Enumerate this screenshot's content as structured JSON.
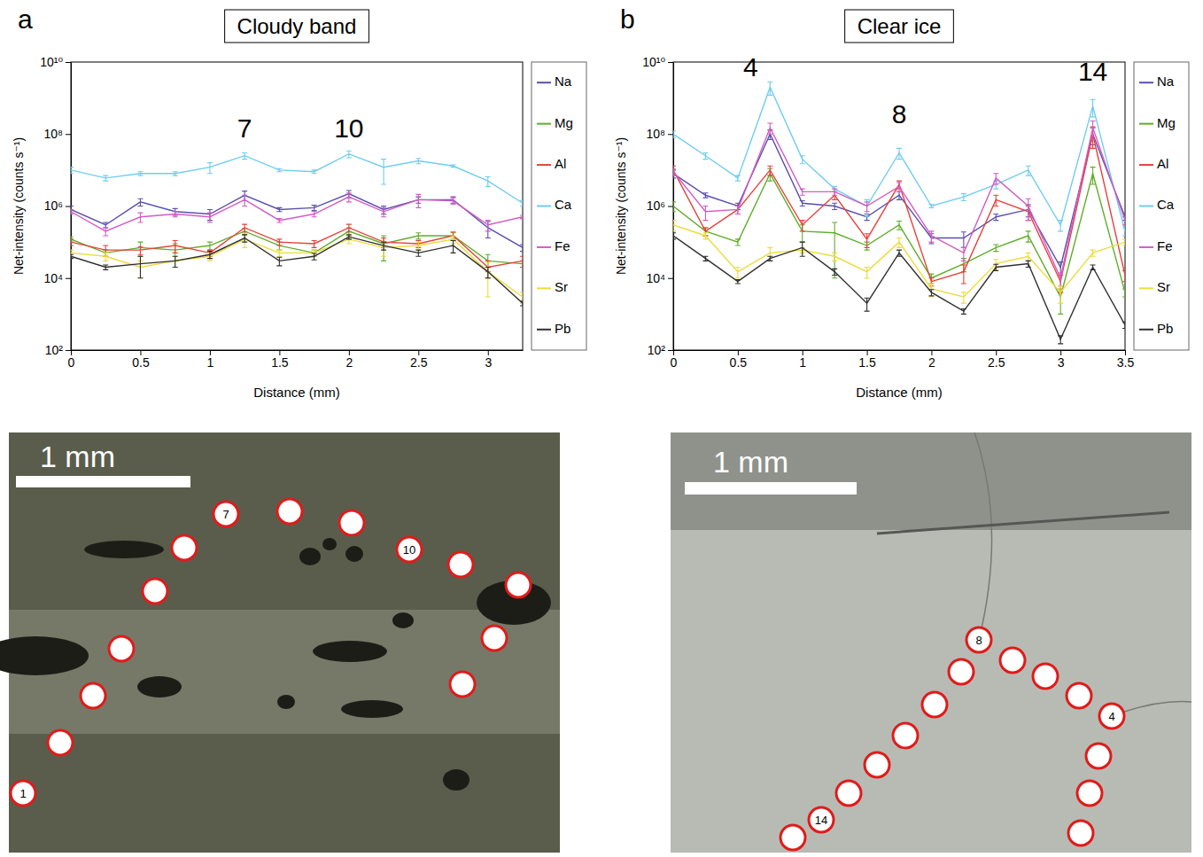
{
  "chart_data": [
    {
      "type": "line",
      "panel": "a",
      "title": "Cloudy band",
      "x_label": "Distance (mm)",
      "y_label": "Net-intensity (counts s⁻¹)",
      "log": "y",
      "grid": false,
      "legend": "right",
      "xlim": [
        0,
        3.25
      ],
      "xticks": [
        0,
        0.5,
        1,
        1.5,
        2,
        2.5,
        3
      ],
      "ylim": [
        100,
        10000000000.0
      ],
      "yticks": [
        {
          "value": 100,
          "label": "10²"
        },
        {
          "value": 10000,
          "label": "10⁴"
        },
        {
          "value": 1000000,
          "label": "10⁶"
        },
        {
          "value": 100000000,
          "label": "10⁸"
        },
        {
          "value": 10000000000,
          "label": "10¹⁰"
        }
      ],
      "x": [
        0,
        0.25,
        0.5,
        0.75,
        1,
        1.25,
        1.5,
        1.75,
        2,
        2.25,
        2.5,
        2.75,
        3,
        3.25
      ],
      "series": [
        {
          "name": "Na",
          "color": "#5a4fae",
          "values": [
            800000.0,
            300000.0,
            1300000.0,
            700000.0,
            600000.0,
            2000000.0,
            800000.0,
            900000.0,
            2200000.0,
            800000.0,
            1500000.0,
            1500000.0,
            250000.0,
            70000.0
          ],
          "errors": [
            200000.0,
            50000.0,
            300000.0,
            150000.0,
            200000.0,
            600000.0,
            100000.0,
            150000.0,
            500000.0,
            200000.0,
            300000.0,
            300000.0,
            120000.0,
            15000.0
          ]
        },
        {
          "name": "Mg",
          "color": "#5fae2a",
          "values": [
            120000.0,
            50000.0,
            70000.0,
            60000.0,
            80000.0,
            200000.0,
            80000.0,
            50000.0,
            200000.0,
            90000.0,
            150000.0,
            150000.0,
            30000.0,
            25000.0
          ],
          "errors": [
            20000.0,
            10000.0,
            30000.0,
            30000.0,
            20000.0,
            40000.0,
            20000.0,
            10000.0,
            50000.0,
            60000.0,
            30000.0,
            30000.0,
            15000.0,
            5000.0
          ]
        },
        {
          "name": "Al",
          "color": "#e8403a",
          "values": [
            100000.0,
            60000.0,
            60000.0,
            80000.0,
            50000.0,
            250000.0,
            100000.0,
            90000.0,
            250000.0,
            100000.0,
            90000.0,
            150000.0,
            20000.0,
            30000.0
          ],
          "errors": [
            20000.0,
            20000.0,
            15000.0,
            30000.0,
            10000.0,
            60000.0,
            20000.0,
            20000.0,
            60000.0,
            30000.0,
            20000.0,
            40000.0,
            10000.0,
            10000.0
          ]
        },
        {
          "name": "Ca",
          "color": "#6fcdee",
          "values": [
            10000000.0,
            6000000.0,
            8000000.0,
            8000000.0,
            12000000.0,
            25000000.0,
            10000000.0,
            9000000.0,
            28000000.0,
            12000000.0,
            18000000.0,
            13000000.0,
            5000000.0,
            1200000.0
          ],
          "errors": [
            2000000.0,
            1000000.0,
            1000000.0,
            1000000.0,
            4000000.0,
            5000000.0,
            1000000.0,
            1000000.0,
            6000000.0,
            8000000.0,
            3000000.0,
            1000000.0,
            1500000.0,
            200000.0
          ]
        },
        {
          "name": "Fe",
          "color": "#d35cc4",
          "values": [
            700000.0,
            200000.0,
            500000.0,
            600000.0,
            500000.0,
            1500000.0,
            400000.0,
            600000.0,
            1800000.0,
            700000.0,
            1500000.0,
            1400000.0,
            300000.0,
            500000.0
          ],
          "errors": [
            100000.0,
            50000.0,
            150000.0,
            100000.0,
            150000.0,
            500000.0,
            50000.0,
            100000.0,
            500000.0,
            200000.0,
            600000.0,
            300000.0,
            100000.0,
            50000.0
          ]
        },
        {
          "name": "Sr",
          "color": "#ecdc3a",
          "values": [
            50000.0,
            40000.0,
            20000.0,
            30000.0,
            40000.0,
            120000.0,
            50000.0,
            50000.0,
            120000.0,
            70000.0,
            80000.0,
            120000.0,
            15000.0,
            3000.0
          ],
          "errors": [
            10000.0,
            10000.0,
            10000.0,
            10000.0,
            10000.0,
            50000.0,
            10000.0,
            10000.0,
            30000.0,
            30000.0,
            20000.0,
            30000.0,
            12000.0,
            1000.0
          ]
        },
        {
          "name": "Pb",
          "color": "#2f2f2f",
          "values": [
            40000.0,
            20000.0,
            25000.0,
            30000.0,
            45000.0,
            130000.0,
            30000.0,
            40000.0,
            140000.0,
            80000.0,
            50000.0,
            80000.0,
            15000.0,
            2000.0
          ],
          "errors": [
            5000.0,
            3000.0,
            15000.0,
            10000.0,
            10000.0,
            30000.0,
            8000.0,
            8000.0,
            20000.0,
            20000.0,
            10000.0,
            30000.0,
            5000.0,
            300.0
          ]
        }
      ],
      "annotations": [
        {
          "text": "7",
          "x": 1.25,
          "y": 80000000.0
        },
        {
          "text": "10",
          "x": 2,
          "y": 80000000.0
        }
      ]
    },
    {
      "type": "line",
      "panel": "b",
      "title": "Clear ice",
      "x_label": "Distance (mm)",
      "y_label": "Net-intensity (counts s⁻¹)",
      "log": "y",
      "grid": false,
      "legend": "right",
      "xlim": [
        0,
        3.5
      ],
      "xticks": [
        0,
        0.5,
        1,
        1.5,
        2,
        2.5,
        3,
        3.5
      ],
      "ylim": [
        100,
        10000000000.0
      ],
      "yticks": [
        {
          "value": 100,
          "label": "10²"
        },
        {
          "value": 10000,
          "label": "10⁴"
        },
        {
          "value": 1000000,
          "label": "10⁶"
        },
        {
          "value": 100000000,
          "label": "10⁸"
        },
        {
          "value": 10000000000,
          "label": "10¹⁰"
        }
      ],
      "x": [
        0,
        0.25,
        0.5,
        0.75,
        1,
        1.25,
        1.5,
        1.75,
        2,
        2.25,
        2.5,
        2.75,
        3,
        3.25,
        3.5
      ],
      "series": [
        {
          "name": "Na",
          "color": "#5a4fae",
          "values": [
            8000000.0,
            2000000.0,
            1000000.0,
            100000000.0,
            1200000.0,
            1000000.0,
            500000.0,
            2000000.0,
            130000.0,
            130000.0,
            500000.0,
            800000.0,
            20000.0,
            100000000.0,
            500000.0
          ],
          "errors": [
            2000000.0,
            300000.0,
            200000.0,
            30000000.0,
            200000.0,
            200000.0,
            100000.0,
            500000.0,
            40000.0,
            60000.0,
            100000.0,
            300000.0,
            8000.0,
            50000000.0,
            100000.0
          ]
        },
        {
          "name": "Mg",
          "color": "#5fae2a",
          "values": [
            1000000.0,
            200000.0,
            100000.0,
            8000000.0,
            200000.0,
            180000.0,
            80000.0,
            300000.0,
            10000.0,
            25000.0,
            70000.0,
            150000.0,
            3000.0,
            8000000.0,
            4000.0
          ],
          "errors": [
            300000.0,
            50000.0,
            20000.0,
            3000000.0,
            100000.0,
            170000.0,
            20000.0,
            80000.0,
            3000.0,
            10000.0,
            15000.0,
            50000.0,
            2000.0,
            4000000.0,
            1000.0
          ]
        },
        {
          "name": "Al",
          "color": "#e8403a",
          "values": [
            10000000.0,
            200000.0,
            800000.0,
            10000000.0,
            300000.0,
            2000000.0,
            120000.0,
            4000000.0,
            8000.0,
            15000.0,
            1500000.0,
            700000.0,
            8000.0,
            100000000.0,
            12000.0
          ],
          "errors": [
            3000000.0,
            50000.0,
            200000.0,
            3000000.0,
            100000.0,
            500000.0,
            50000.0,
            1000000.0,
            2000.0,
            8000.0,
            500000.0,
            300000.0,
            4000.0,
            60000000.0,
            4000.0
          ]
        },
        {
          "name": "Ca",
          "color": "#6fcdee",
          "values": [
            100000000.0,
            25000000.0,
            6000000.0,
            2000000000.0,
            20000000.0,
            3000000.0,
            1000000.0,
            30000000.0,
            1000000.0,
            1800000.0,
            4000000.0,
            10000000.0,
            300000.0,
            600000000.0,
            200000.0
          ],
          "errors": [
            20000000.0,
            5000000.0,
            1000000.0,
            800000000.0,
            5000000.0,
            500000.0,
            500000.0,
            10000000.0,
            100000.0,
            400000.0,
            1000000.0,
            3000000.0,
            100000.0,
            300000000.0,
            50000.0
          ]
        },
        {
          "name": "Fe",
          "color": "#d35cc4",
          "values": [
            9000000.0,
            700000.0,
            800000.0,
            150000000.0,
            2500000.0,
            2500000.0,
            1000000.0,
            3500000.0,
            150000.0,
            50000.0,
            6000000.0,
            1000000.0,
            10000.0,
            150000000.0,
            400000.0
          ],
          "errors": [
            2000000.0,
            300000.0,
            200000.0,
            50000000.0,
            500000.0,
            500000.0,
            300000.0,
            1000000.0,
            50000.0,
            20000.0,
            2000000.0,
            600000.0,
            4000.0,
            80000000.0,
            100000.0
          ]
        },
        {
          "name": "Sr",
          "color": "#ecdc3a",
          "values": [
            300000.0,
            150000.0,
            15000.0,
            50000.0,
            60000.0,
            40000.0,
            15000.0,
            100000.0,
            5000.0,
            3000.0,
            25000.0,
            40000.0,
            4000.0,
            50000.0,
            100000.0
          ],
          "errors": [
            100000.0,
            30000.0,
            5000.0,
            20000.0,
            10000.0,
            10000.0,
            5000.0,
            30000.0,
            2000.0,
            1000.0,
            8000.0,
            10000.0,
            2000.0,
            10000.0,
            20000.0
          ]
        },
        {
          "name": "Pb",
          "color": "#2f2f2f",
          "values": [
            150000.0,
            35000.0,
            8000.0,
            35000.0,
            70000.0,
            15000.0,
            2000.0,
            50000.0,
            4000.0,
            1200.0,
            20000.0,
            25000.0,
            200,
            20000.0,
            500
          ],
          "errors": [
            30000.0,
            5000.0,
            1000.0,
            5000.0,
            30000.0,
            3000.0,
            800.0,
            10000.0,
            800.0,
            200.0,
            4000.0,
            5000.0,
            50,
            3000.0,
            100.0
          ]
        }
      ],
      "annotations": [
        {
          "text": "4",
          "x": 0.6,
          "y": 4000000000.0
        },
        {
          "text": "8",
          "x": 1.75,
          "y": 200000000.0
        },
        {
          "text": "14",
          "x": 3.25,
          "y": 3000000000.0
        }
      ]
    }
  ],
  "images": [
    {
      "scale_bar": "1 mm",
      "markers": [
        "1",
        null,
        null,
        null,
        null,
        null,
        "7",
        null,
        null,
        "10",
        null,
        null,
        null,
        null
      ]
    },
    {
      "scale_bar": "1 mm",
      "markers": [
        null,
        null,
        null,
        "4",
        null,
        null,
        null,
        "8",
        null,
        null,
        null,
        null,
        null,
        "14",
        null
      ]
    }
  ]
}
